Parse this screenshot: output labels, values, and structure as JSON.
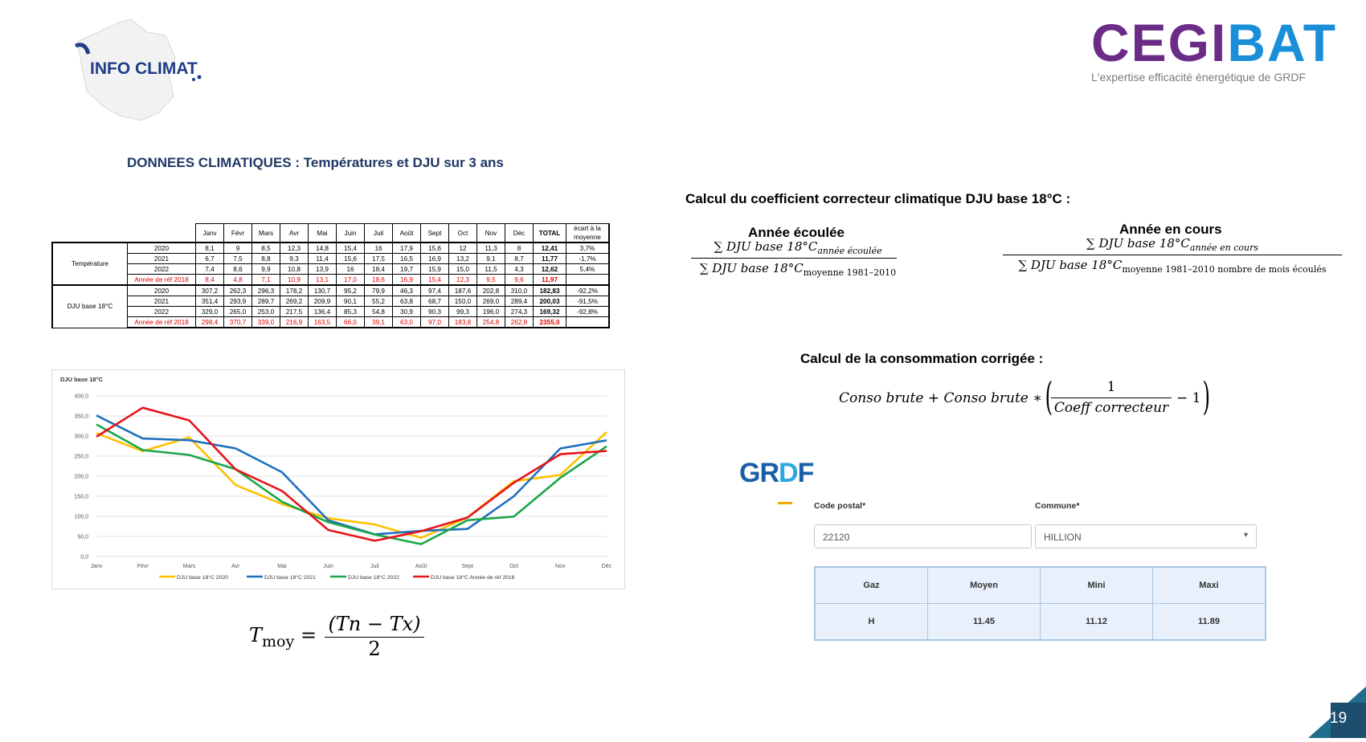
{
  "logos": {
    "infoclimat": "INFO CLIMAT",
    "cegibat": {
      "word": "CEGIBAT",
      "tagline": "L'expertise efficacité énergétique de GRDF"
    },
    "grdf": "GRDF"
  },
  "left": {
    "title": "DONNEES CLIMATIQUES : Températures et DJU sur 3 ans",
    "table": {
      "months": [
        "Janv",
        "Févr",
        "Mars",
        "Avr",
        "Mai",
        "Juin",
        "Juil",
        "Août",
        "Sept",
        "Oct",
        "Nov",
        "Déc"
      ],
      "total_header": "TOTAL",
      "ecart_header": "écart à la moyenne",
      "groups": [
        {
          "label": "Température",
          "rows": [
            {
              "year": "2020",
              "values": [
                "8,1",
                "9",
                "8,5",
                "12,3",
                "14,8",
                "15,4",
                "16",
                "17,9",
                "15,6",
                "12",
                "11,3",
                "8"
              ],
              "total": "12,41",
              "ecart": "3,7%",
              "red": false
            },
            {
              "year": "2021",
              "values": [
                "6,7",
                "7,5",
                "8,8",
                "9,3",
                "11,4",
                "15,6",
                "17,5",
                "16,5",
                "16,9",
                "13,2",
                "9,1",
                "8,7"
              ],
              "total": "11,77",
              "ecart": "-1,7%",
              "red": false
            },
            {
              "year": "2022",
              "values": [
                "7,4",
                "8,6",
                "9,9",
                "10,8",
                "13,9",
                "16",
                "18,4",
                "19,7",
                "15,9",
                "15,0",
                "11,5",
                "4,3"
              ],
              "total": "12,62",
              "ecart": "5,4%",
              "red": false
            },
            {
              "year": "Année de réf 2018",
              "values": [
                "8,4",
                "4,8",
                "7,1",
                "10,9",
                "13,1",
                "17,0",
                "18,6",
                "16,9",
                "15,4",
                "12,3",
                "9,5",
                "9,6"
              ],
              "total": "11,97",
              "ecart": "",
              "red": true
            }
          ]
        },
        {
          "label": "DJU base 18°C",
          "rows": [
            {
              "year": "2020",
              "values": [
                "307,2",
                "262,3",
                "296,3",
                "178,2",
                "130,7",
                "95,2",
                "79,9",
                "46,3",
                "97,4",
                "187,6",
                "202,8",
                "310,0"
              ],
              "total": "182,83",
              "ecart": "-92,2%",
              "red": false
            },
            {
              "year": "2021",
              "values": [
                "351,4",
                "293,9",
                "289,7",
                "269,2",
                "209,9",
                "90,1",
                "55,2",
                "63,8",
                "68,7",
                "150,0",
                "269,0",
                "289,4"
              ],
              "total": "200,03",
              "ecart": "-91,5%",
              "red": false
            },
            {
              "year": "2022",
              "values": [
                "329,0",
                "265,0",
                "253,0",
                "217,5",
                "136,4",
                "85,3",
                "54,8",
                "30,9",
                "90,3",
                "99,3",
                "196,0",
                "274,3"
              ],
              "total": "169,32",
              "ecart": "-92,8%",
              "red": false
            },
            {
              "year": "Année de réf 2018",
              "values": [
                "298,4",
                "370,7",
                "339,0",
                "216,9",
                "163,5",
                "66,0",
                "39,1",
                "63,0",
                "97,0",
                "183,8",
                "254,8",
                "262,8"
              ],
              "total": "2355,0",
              "ecart": "",
              "red": true
            }
          ]
        }
      ]
    },
    "chart_data": {
      "type": "line",
      "title": "DJU base 18°C",
      "categories": [
        "Janv",
        "Févr",
        "Mars",
        "Avr",
        "Mai",
        "Juin",
        "Juil",
        "Août",
        "Sept",
        "Oct",
        "Nov",
        "Déc"
      ],
      "y_ticks": [
        "0,0",
        "50,0",
        "100,0",
        "150,0",
        "200,0",
        "250,0",
        "300,0",
        "350,0",
        "400,0"
      ],
      "ylim": [
        0,
        400
      ],
      "grid": true,
      "legend_position": "bottom",
      "series": [
        {
          "name": "DJU base 18°C 2020",
          "color": "#ffc000",
          "values": [
            307.2,
            262.3,
            296.3,
            178.2,
            130.7,
            95.2,
            79.9,
            46.3,
            97.4,
            187.6,
            202.8,
            310.0
          ]
        },
        {
          "name": "DJU base 18°C 2021",
          "color": "#1f6fbf",
          "values": [
            351.4,
            293.9,
            289.7,
            269.2,
            209.9,
            90.1,
            55.2,
            63.8,
            68.7,
            150.0,
            269.0,
            289.4
          ]
        },
        {
          "name": "DJU base 18°C 2022",
          "color": "#1aa64a",
          "values": [
            329.0,
            265.0,
            253.0,
            217.5,
            136.4,
            85.3,
            54.8,
            30.9,
            90.3,
            99.3,
            196.0,
            274.3
          ]
        },
        {
          "name": "DJU base 18°C Année de réf 2018",
          "color": "#e8141a",
          "values": [
            298.4,
            370.7,
            339.0,
            216.9,
            163.5,
            66.0,
            39.1,
            63.0,
            97.0,
            183.8,
            254.8,
            262.8
          ]
        }
      ]
    },
    "tmoy": {
      "lhs": "T",
      "sub": "moy",
      "eq": "=",
      "num": "(Tn − Tx)",
      "den": "2"
    }
  },
  "right": {
    "coef_title": "Calcul du coefficient correcteur climatique DJU base 18°C :",
    "annee_ecoulee": {
      "heading": "Année écoulée",
      "num": "∑ DJU base 18°C",
      "num_sub": "année écoulée",
      "den": "∑ DJU base 18°C",
      "den_sub": "moyenne 1981–2010"
    },
    "annee_en_cours": {
      "heading": "Année en cours",
      "num": "∑ DJU base 18°C",
      "num_sub": "année en cours",
      "den": "∑ DJU base 18°C",
      "den_sub": "moyenne 1981–2010 nombre de mois écoulés"
    },
    "conso_title": "Calcul de la consommation corrigée :",
    "conso_formula": {
      "lhs": "Conso brute + Conso brute ∗",
      "num": "1",
      "den": "Coeff correcteur",
      "tail": "− 1"
    },
    "grdf_form": {
      "code_postal_label": "Code postal*",
      "code_postal_value": "22120",
      "commune_label": "Commune*",
      "commune_value": "HILLION",
      "table_headers": [
        "Gaz",
        "Moyen",
        "Mini",
        "Maxi"
      ],
      "table_row": [
        "H",
        "11.45",
        "11.12",
        "11.89"
      ]
    }
  },
  "footer": {
    "page_number": "19"
  }
}
